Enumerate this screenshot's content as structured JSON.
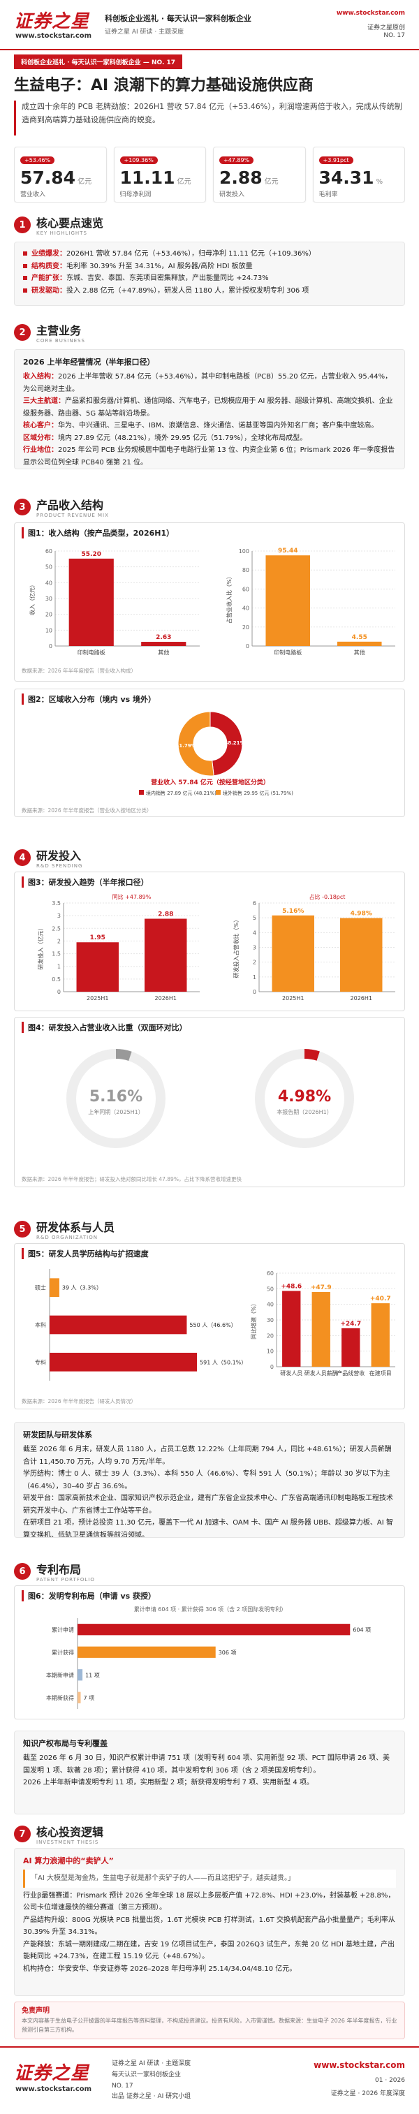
{
  "header": {
    "brand": "证券之星",
    "site": "www.stockstar.com",
    "line1": "科创板企业巡礼 · 每天认识一家科创板企业",
    "line2": "证券之星 AI 研读 · 主题深度",
    "right_site": "www.stockstar.com",
    "right_tag": "证券之星原创",
    "issue": "NO. 17"
  },
  "banner": "科创板企业巡礼 · 每天认识一家科创板企业 — NO. 17",
  "title": "生益电子：AI 浪潮下的算力基础设施供应商",
  "intro": "成立四十余年的 PCB 老牌劲旅：2026H1 营收 57.84 亿元（+53.46%），利润增速两倍于收入，完成从传统制造商到高端算力基础设施供应商的蜕变。",
  "kpis": [
    {
      "badge": "+53.46%",
      "value": "57.84",
      "unit": "亿元",
      "label": "营业收入"
    },
    {
      "badge": "+109.36%",
      "value": "11.11",
      "unit": "亿元",
      "label": "归母净利润"
    },
    {
      "badge": "+47.89%",
      "value": "2.88",
      "unit": "亿元",
      "label": "研发投入"
    },
    {
      "badge": "+3.91pct",
      "value": "34.31",
      "unit": "%",
      "label": "毛利率"
    }
  ],
  "s1": {
    "no": "1",
    "title": "核心要点速览",
    "en": "KEY HIGHLIGHTS",
    "items": [
      {
        "k": "业绩爆发：",
        "t": "2026H1 营收 57.84 亿元（+53.46%），归母净利 11.11 亿元（+109.36%）"
      },
      {
        "k": "结构质变：",
        "t": "毛利率 30.39% 升至 34.31%，AI 服务器/高阶 HDI 板放量"
      },
      {
        "k": "产能扩张：",
        "t": "东城、吉安、泰国、东莞项目密集释放，产出能量同比 +24.73%"
      },
      {
        "k": "研发驱动：",
        "t": "投入 2.88 亿元（+47.89%），研发人员 1180 人，累计授权发明专利 306 项"
      }
    ]
  },
  "s2": {
    "no": "2",
    "title": "主营业务",
    "en": "CORE BUSINESS",
    "sub": "2026 上半年经营情况（半年报口径）",
    "paras": [
      {
        "k": "收入结构：",
        "t": "2026 上半年营收 57.84 亿元（+53.46%），其中印制电路板（PCB）55.20 亿元，占营业收入 95.44%，为公司绝对主业。"
      },
      {
        "k": "三大主航道：",
        "t": "产品紧扣服务器/计算机、通信网络、汽车电子，已规模应用于 AI 服务器、超级计算机、高端交换机、企业级服务器、路由器、5G 基站等前沿场景。"
      },
      {
        "k": "核心客户：",
        "t": "华为、中兴通讯、三星电子、IBM、浪潮信息、烽火通信、诺基亚等国内外知名厂商；客户集中度较高。"
      },
      {
        "k": "区域分布：",
        "t": "境内 27.89 亿元（48.21%），境外 29.95 亿元（51.79%），全球化布局成型。"
      },
      {
        "k": "行业地位：",
        "t": "2025 年公司 PCB 业务规模居中国电子电路行业第 13 位、内资企业第 6 位；Prismark 2026 年一季度报告显示公司位列全球 PCB40 强第 21 位。"
      }
    ]
  },
  "s3": {
    "no": "3",
    "title": "产品收入结构",
    "en": "PRODUCT REVENUE MIX",
    "fig1": {
      "title": "图1：收入结构（按产品类型，2026H1）",
      "left": {
        "ylabel": "收入（亿元）",
        "categories": [
          "印制电路板",
          "其他"
        ],
        "values": [
          55.2,
          2.63
        ],
        "value_labels": [
          "55.20",
          "2.63"
        ],
        "ylim": [
          0,
          60
        ],
        "yticks": [
          0,
          10,
          20,
          30,
          40,
          50,
          60
        ],
        "color": "#c8161d"
      },
      "right": {
        "ylabel": "占营业收入比（%）",
        "categories": [
          "印制电路板",
          "其他"
        ],
        "values": [
          95.44,
          4.55
        ],
        "ylim": [
          0,
          100
        ],
        "yticks": [
          0,
          20,
          40,
          60,
          80,
          100
        ],
        "color": "#f39020"
      },
      "note": "数据来源：2026 年半年度报告（营业收入构成）"
    },
    "fig2": {
      "title": "图2：区域收入分布（境内 vs 境外）",
      "series": [
        {
          "name": "境内销售",
          "legend": "境内销售 27.89 亿元 (48.21%)",
          "value": 48.21,
          "value_label": "48.21%",
          "color": "#c8161d"
        },
        {
          "name": "境外销售",
          "legend": "境外销售 29.95 亿元 (51.79%)",
          "value": 51.79,
          "value_label": "51.79%",
          "color": "#f39020"
        }
      ],
      "caption": "营业收入 57.84 亿元（按经营地区分类）",
      "note": "数据来源：2026 年半年度报告（营业收入按地区分类）"
    }
  },
  "s4": {
    "no": "4",
    "title": "研发投入",
    "en": "R&D SPENDING",
    "fig3": {
      "title": "图3：研发投入趋势（半年报口径）",
      "left": {
        "ylabel": "研发投入（亿元）",
        "annotation": "同比 +47.89%",
        "categories": [
          "2025H1",
          "2026H1"
        ],
        "values": [
          1.95,
          2.88
        ],
        "ylim": [
          0,
          3.5
        ],
        "yticks": [
          0,
          0.5,
          1,
          1.5,
          2,
          2.5,
          3,
          3.5
        ],
        "color": "#c8161d"
      },
      "right": {
        "ylabel": "研发投入占营收比（%）",
        "annotation": "占比 -0.18pct",
        "categories": [
          "2025H1",
          "2026H1"
        ],
        "values": [
          5.16,
          4.98
        ],
        "value_labels": [
          "5.16%",
          "4.98%"
        ],
        "ylim": [
          0,
          6
        ],
        "yticks": [
          0,
          1,
          2,
          3,
          4,
          5,
          6
        ],
        "color": "#f39020"
      }
    },
    "fig4": {
      "title": "图4：研发投入占营业收入比重（双面环对比）",
      "rings": [
        {
          "value": 5.16,
          "value_label": "5.16%",
          "label": "上年同期（2025H1）",
          "color": "#999999"
        },
        {
          "value": 4.98,
          "value_label": "4.98%",
          "label": "本报告期（2026H1）",
          "color": "#c8161d"
        }
      ],
      "note": "数据来源：2026 年半年度报告；研发投入绝对额同比增长 47.89%，占比下降系营收增速更快"
    }
  },
  "s5": {
    "no": "5",
    "title": "研发体系与人员",
    "en": "R&D ORGANIZATION",
    "fig5": {
      "title": "图5：研发人员学历结构与扩招速度",
      "left": {
        "categories": [
          "硕士",
          "本科",
          "专科"
        ],
        "values": [
          39,
          550,
          591
        ],
        "value_labels": [
          "39 人（3.3%）",
          "550 人（46.6%）",
          "591 人（50.1%）"
        ],
        "xlim": [
          0,
          700
        ],
        "colors": [
          "#f39020",
          "#c8161d",
          "#c8161d"
        ]
      },
      "right": {
        "ylabel": "同比增速（%）",
        "categories": [
          "研发人员",
          "研发人员薪酬",
          "产品线营收",
          "在建项目"
        ],
        "values": [
          48.6,
          47.9,
          24.7,
          40.7
        ],
        "value_labels": [
          "+48.6",
          "+47.9",
          "+24.7",
          "+40.7"
        ],
        "ylim": [
          0,
          60
        ],
        "yticks": [
          0,
          10,
          20,
          30,
          40,
          50,
          60
        ],
        "colors": [
          "#c8161d",
          "#f39020",
          "#c8161d",
          "#f39020"
        ]
      },
      "note": "数据来源：2026 年半年度报告（研发人员情况）"
    },
    "text": {
      "heading": "研发团队与研发体系",
      "paras": [
        "截至 2026 年 6 月末，研发人员 1180 人，占员工总数 12.22%（上年同期 794 人，同比 +48.61%）；研发人员薪酬合计 11,450.70 万元，人均 9.70 万元/半年。",
        "学历结构：博士 0 人、硕士 39 人（3.3%）、本科 550 人（46.6%）、专科 591 人（50.1%）；年龄以 30 岁以下为主（46.4%），30–40 岁占 36.6%。",
        "研发平台：国家高新技术企业、国家知识产权示范企业，建有广东省企业技术中心、广东省高端通讯印制电路板工程技术研究开发中心、广东省博士工作站等平台。",
        "在研项目 21 项，预计总投资 11.30 亿元，覆盖下一代 AI 加速卡、OAM 卡、国产 AI 服务器 UBB、超级算力板、AI 智算交换机、低轨卫星通信板等前沿领域。"
      ]
    }
  },
  "s6": {
    "no": "6",
    "title": "专利布局",
    "en": "PATENT PORTFOLIO",
    "fig6": {
      "title": "图6：发明专利布局（申请 vs 获授）",
      "legend": "累计申请 604 项 · 累计获得 306 项（含 2 项国际发明专利）",
      "categories": [
        "累计申请",
        "累计获得",
        "本期新申请",
        "本期新获得"
      ],
      "values": [
        604,
        306,
        11,
        7
      ],
      "value_labels": [
        "604 项",
        "306 项",
        "11 项",
        "7 项"
      ],
      "xlim": [
        0,
        650
      ],
      "colors": [
        "#c8161d",
        "#f39020",
        "#9db8d6",
        "#f7c08a"
      ]
    },
    "text": {
      "heading": "知识产权布局与专利覆盖",
      "paras": [
        "截至 2026 年 6 月 30 日，知识产权累计申请 751 项（发明专利 604 项、实用新型 92 项、PCT 国际申请 26 项、美国发明 1 项、软著 28 项）；累计获得 410 项，其中发明专利 306 项（含 2 项美国发明专利）。",
        "2026 上半年新申请发明专利 11 项，实用新型 2 项；新获得发明专利 7 项、实用新型 4 项。"
      ]
    }
  },
  "s7": {
    "no": "7",
    "title": "核心投资逻辑",
    "en": "INVESTMENT THESIS",
    "heading": "AI 算力浪潮中的“卖铲人”",
    "quote": "「AI 大模型是淘金热，生益电子就是那个卖铲子的人——而且这把铲子，越卖越贵。」",
    "paras": [
      "行业β最强赛道：Prismark 预计 2026 全年全球 18 层以上多层板产值 +72.8%、HDI +23.0%，封装基板 +28.8%，公司卡位增速最快的细分赛道（第三方预测）。",
      "产品结构升级：800G 光模块 PCB 批量出货，1.6T 光模块 PCB 打样测试，1.6T 交换机配套产品小批量量产；毛利率从 30.39% 升至 34.31%。",
      "产能释放：东城一期刚建成/二期在建，吉安 19 亿项目试生产，泰国 2026Q3 试生产，东莞 20 亿 HDI 基地土建，产出能耗同比 +24.73%，在建工程 15.19 亿元（+48.67%）。",
      "机构持仓：华安安华、华安证券等 2026–2028 年归母净利 25.14/34.04/48.10 亿元。"
    ]
  },
  "disclaimer": {
    "title": "免责声明",
    "text": "本文内容基于生益电子公开披露的半年度报告等资料整理，不构成投资建议。投资有风险，入市需谨慎。数据来源：生益电子 2026 年半年度报告，行业预测引自第三方机构。"
  },
  "footer": {
    "brand": "证券之星",
    "site": "www.stockstar.com",
    "l1": "证券之星 AI 研读 · 主题深度",
    "l2": "每天认识一家科创板企业",
    "l3": "NO. 17",
    "l4": "出品 证券之星 · AI 研究小组",
    "r_site": "www.stockstar.com",
    "r1": "01 · 2026",
    "r2": "证券之星 · 2026 年度深度"
  }
}
